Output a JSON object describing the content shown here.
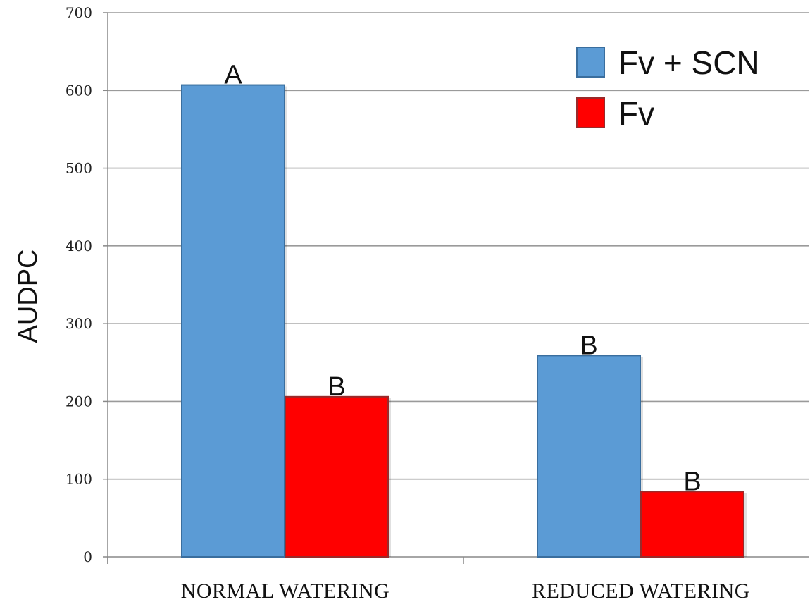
{
  "chart_data": {
    "type": "bar",
    "ylabel": "AUDPC",
    "ylim": [
      0,
      700
    ],
    "yticks": [
      "0",
      "100",
      "200",
      "300",
      "400",
      "500",
      "600",
      "700"
    ],
    "grid": true,
    "legend_position": "top-right",
    "categories": [
      "NORMAL WATERING",
      "REDUCED WATERING"
    ],
    "series": [
      {
        "name": "Fv + SCN",
        "color": "#5b9bd5",
        "values": [
          607,
          259
        ],
        "labels": [
          "A",
          "B"
        ]
      },
      {
        "name": "Fv",
        "color": "#ff0000",
        "values": [
          206,
          84
        ],
        "labels": [
          "B",
          "B"
        ]
      }
    ]
  }
}
